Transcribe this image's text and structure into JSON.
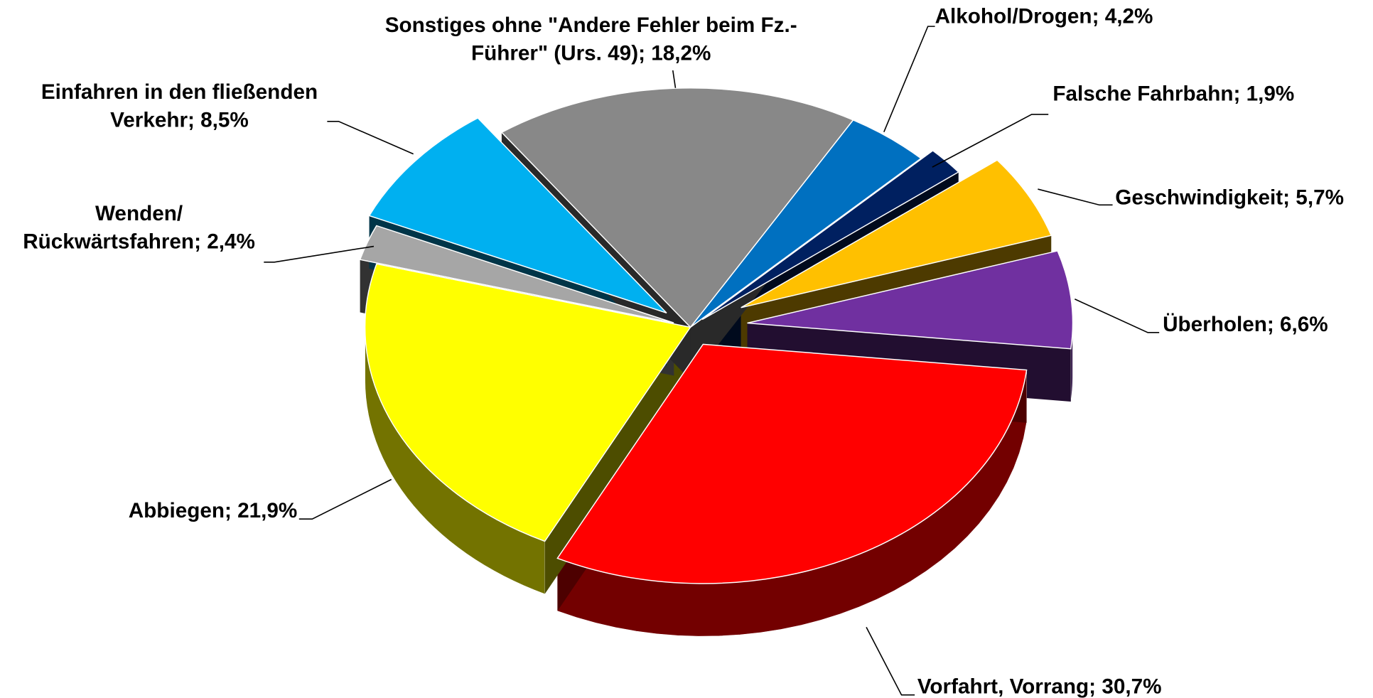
{
  "chart_data": {
    "type": "pie3d",
    "categories": [
      "Alkohol/Drogen",
      "Falsche Fahrbahn",
      "Geschwindigkeit",
      "Überholen",
      "Vorfahrt, Vorrang",
      "Abbiegen",
      "Wenden/ Rückwärtsfahren",
      "Einfahren in den fließenden Verkehr",
      "Sonstiges ohne \"Andere Fehler beim Fz.-Führer\" (Urs. 49)"
    ],
    "values": [
      4.2,
      1.9,
      5.7,
      6.6,
      30.7,
      21.9,
      2.4,
      8.5,
      18.2
    ],
    "value_labels": [
      [
        "Alkohol/Drogen; 4,2%"
      ],
      [
        "Falsche Fahrbahn; 1,9%"
      ],
      [
        "Geschwindigkeit; 5,7%"
      ],
      [
        "Überholen; 6,6%"
      ],
      [
        "Vorfahrt, Vorrang; 30,7%"
      ],
      [
        "Abbiegen; 21,9%"
      ],
      [
        "Wenden/",
        "Rückwärtsfahren; 2,4%"
      ],
      [
        "Einfahren in den fließenden",
        "Verkehr; 8,5%"
      ],
      [
        "Sonstiges ohne \"Andere Fehler beim Fz.-",
        "Führer\" (Urs. 49); 18,2%"
      ]
    ],
    "colors": [
      "#0070c0",
      "#002060",
      "#ffc000",
      "#7030a0",
      "#ff0000",
      "#ffff00",
      "#a6a6a6",
      "#00b0f0",
      "#888888"
    ]
  }
}
